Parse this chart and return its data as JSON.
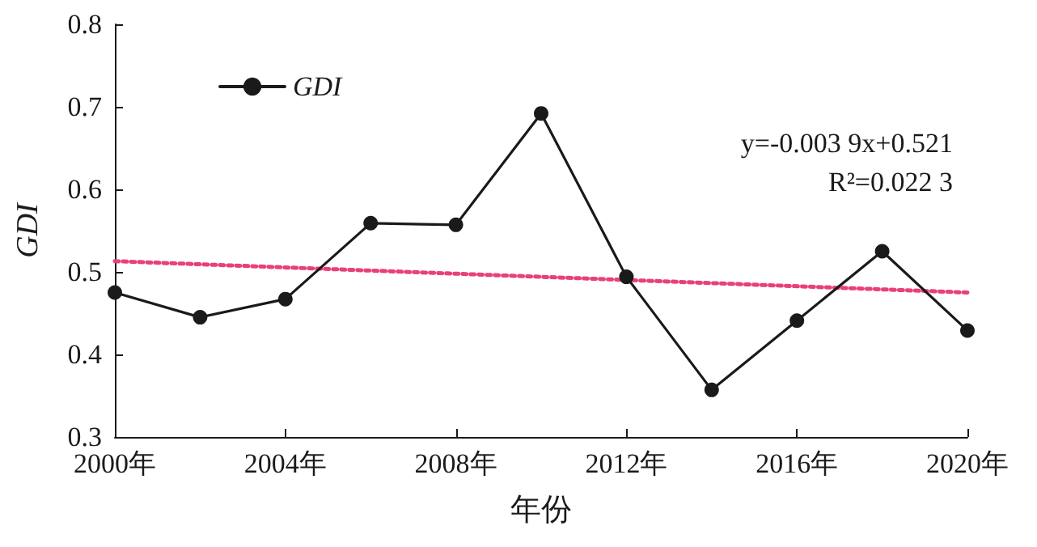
{
  "chart_data": {
    "type": "line",
    "xlabel": "年份",
    "ylabel": "GDI",
    "x": [
      2000,
      2002,
      2004,
      2006,
      2008,
      2010,
      2012,
      2014,
      2016,
      2018,
      2020
    ],
    "series": [
      {
        "name": "GDI",
        "color": "#1a1a1a",
        "values": [
          0.475,
          0.445,
          0.467,
          0.559,
          0.557,
          0.692,
          0.494,
          0.357,
          0.441,
          0.525,
          0.429
        ],
        "marker": "circle",
        "line_style": "solid"
      },
      {
        "type": "line",
        "color": "#e8407a",
        "x": [
          2000,
          2020
        ],
        "values": [
          0.513,
          0.475
        ],
        "marker": "none",
        "line_style": "dotted"
      }
    ],
    "xlim": [
      2000,
      2020
    ],
    "xticks": [
      {
        "value": 2000,
        "label": "2000年"
      },
      {
        "value": 2004,
        "label": "2004年"
      },
      {
        "value": 2008,
        "label": "2008年"
      },
      {
        "value": 2012,
        "label": "2012年"
      },
      {
        "value": 2016,
        "label": "2016年"
      },
      {
        "value": 2020,
        "label": "2020年"
      }
    ],
    "ylim": [
      0.3,
      0.8
    ],
    "yticks": [
      0.3,
      0.4,
      0.5,
      0.6,
      0.7,
      0.8
    ],
    "grid": false,
    "legend": "top left",
    "annotations": [
      "y=-0.003 9x+0.521",
      "R²=0.022 3"
    ]
  }
}
